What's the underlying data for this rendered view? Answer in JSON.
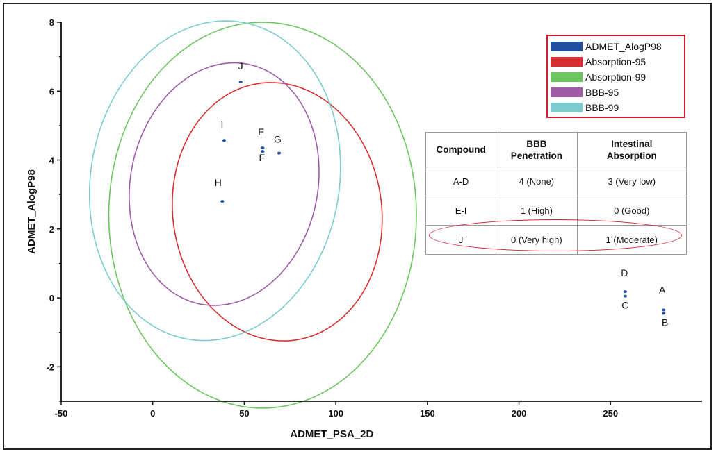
{
  "chart_data": {
    "type": "scatter",
    "xlabel": "ADMET_PSA_2D",
    "ylabel": "ADMET_AlogP98",
    "xlim": [
      -50,
      300
    ],
    "ylim": [
      -3,
      8
    ],
    "xticks": [
      -50,
      0,
      50,
      100,
      150,
      200,
      250
    ],
    "yticks": [
      -2,
      0,
      2,
      4,
      6,
      8
    ],
    "legend_placement": "top-right",
    "grid": false,
    "series": [
      {
        "name": "ADMET_AlogP98",
        "color": "#1f4e9e",
        "points": [
          {
            "label": "A",
            "x": 279,
            "y": -0.35
          },
          {
            "label": "B",
            "x": 279,
            "y": -0.45
          },
          {
            "label": "C",
            "x": 258,
            "y": 0.05
          },
          {
            "label": "D",
            "x": 258,
            "y": 0.18
          },
          {
            "label": "E",
            "x": 60,
            "y": 4.35
          },
          {
            "label": "F",
            "x": 60,
            "y": 4.25
          },
          {
            "label": "G",
            "x": 69,
            "y": 4.2
          },
          {
            "label": "H",
            "x": 38,
            "y": 2.8
          },
          {
            "label": "I",
            "x": 39,
            "y": 4.57
          },
          {
            "label": "J",
            "x": 48,
            "y": 6.27
          }
        ]
      }
    ],
    "ellipses": [
      {
        "name": "Absorption-95",
        "color": "#d62f2f",
        "cx": 68,
        "cy": 2.5,
        "rx": 55,
        "ry": 3.9,
        "angle": 54
      },
      {
        "name": "Absorption-99",
        "color": "#6cc55f",
        "cx": 60,
        "cy": 2.4,
        "rx": 84,
        "ry": 5.6,
        "angle": 47
      },
      {
        "name": "BBB-95",
        "color": "#a05aa8",
        "cx": 39,
        "cy": 3.3,
        "rx": 55,
        "ry": 3.3,
        "angle": 50
      },
      {
        "name": "BBB-99",
        "color": "#7ccbcf",
        "cx": 34,
        "cy": 3.4,
        "rx": 72,
        "ry": 4.4,
        "angle": 50
      }
    ]
  },
  "legend": {
    "items": [
      {
        "label": "ADMET_AlogP98",
        "color": "#1f4e9e"
      },
      {
        "label": "Absorption-95",
        "color": "#d62f2f"
      },
      {
        "label": "Absorption-99",
        "color": "#6cc55f"
      },
      {
        "label": "BBB-95",
        "color": "#a05aa8"
      },
      {
        "label": "BBB-99",
        "color": "#7ccbcf"
      }
    ]
  },
  "table": {
    "headers": [
      "Compound",
      "BBB\nPenetration",
      "Intestinal\nAbsorption"
    ],
    "rows": [
      [
        "A-D",
        "4 (None)",
        "3 (Very low)"
      ],
      [
        "E-I",
        "1 (High)",
        "0 (Good)"
      ],
      [
        "J",
        "0 (Very high)",
        "1 (Moderate)"
      ]
    ],
    "highlighted_row": 2,
    "highlight_color": "#d01f2b"
  }
}
